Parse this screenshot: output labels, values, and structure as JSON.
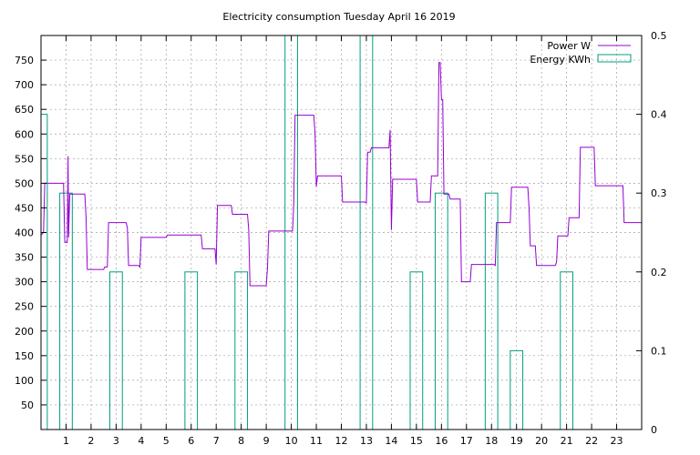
{
  "chart_data": {
    "type": "line",
    "title": "Electricity consumption Tuesday April 16 2019",
    "xlim": [
      0,
      24
    ],
    "ylim": [
      0,
      800
    ],
    "y2lim": [
      0,
      0.5
    ],
    "x_ticks": [
      1,
      2,
      3,
      4,
      5,
      6,
      7,
      8,
      9,
      10,
      11,
      12,
      13,
      14,
      15,
      16,
      17,
      18,
      19,
      20,
      21,
      22,
      23
    ],
    "y_ticks": [
      50,
      100,
      150,
      200,
      250,
      300,
      350,
      400,
      450,
      500,
      550,
      600,
      650,
      700,
      750
    ],
    "y2_ticks": [
      0,
      0.1,
      0.2,
      0.3,
      0.4,
      0.5
    ],
    "grid": true,
    "legend_position": "top-right",
    "series": [
      {
        "name": "Power W",
        "type": "step-line",
        "axis": "y",
        "color": "#9400d3",
        "points": [
          [
            0,
            395
          ],
          [
            0.1,
            400
          ],
          [
            0.15,
            500
          ],
          [
            0.9,
            500
          ],
          [
            0.95,
            380
          ],
          [
            1.05,
            380
          ],
          [
            1.08,
            555
          ],
          [
            1.1,
            390
          ],
          [
            1.15,
            478
          ],
          [
            1.75,
            478
          ],
          [
            1.8,
            430
          ],
          [
            1.85,
            325
          ],
          [
            2.5,
            325
          ],
          [
            2.55,
            330
          ],
          [
            2.65,
            330
          ],
          [
            2.7,
            420
          ],
          [
            3.4,
            420
          ],
          [
            3.45,
            410
          ],
          [
            3.5,
            333
          ],
          [
            3.9,
            333
          ],
          [
            3.95,
            330
          ],
          [
            4.0,
            390
          ],
          [
            5.0,
            390
          ],
          [
            5.05,
            395
          ],
          [
            6.4,
            395
          ],
          [
            6.45,
            367
          ],
          [
            6.95,
            367
          ],
          [
            7.0,
            335
          ],
          [
            7.05,
            455
          ],
          [
            7.6,
            455
          ],
          [
            7.65,
            437
          ],
          [
            8.25,
            437
          ],
          [
            8.3,
            405
          ],
          [
            8.35,
            292
          ],
          [
            9.0,
            292
          ],
          [
            9.05,
            330
          ],
          [
            9.1,
            403
          ],
          [
            10.05,
            403
          ],
          [
            10.1,
            460
          ],
          [
            10.15,
            638
          ],
          [
            10.9,
            638
          ],
          [
            10.95,
            600
          ],
          [
            11.0,
            493
          ],
          [
            11.05,
            515
          ],
          [
            12.0,
            515
          ],
          [
            12.05,
            462
          ],
          [
            12.95,
            462
          ],
          [
            13.0,
            460
          ],
          [
            13.05,
            563
          ],
          [
            13.15,
            563
          ],
          [
            13.2,
            572
          ],
          [
            13.9,
            572
          ],
          [
            13.95,
            608
          ],
          [
            14.0,
            405
          ],
          [
            14.05,
            508
          ],
          [
            15.0,
            508
          ],
          [
            15.05,
            462
          ],
          [
            15.55,
            462
          ],
          [
            15.6,
            515
          ],
          [
            15.85,
            515
          ],
          [
            15.9,
            745
          ],
          [
            15.95,
            745
          ],
          [
            16.0,
            670
          ],
          [
            16.05,
            670
          ],
          [
            16.1,
            478
          ],
          [
            16.3,
            478
          ],
          [
            16.35,
            468
          ],
          [
            16.75,
            468
          ],
          [
            16.8,
            300
          ],
          [
            17.15,
            300
          ],
          [
            17.2,
            335
          ],
          [
            18.1,
            335
          ],
          [
            18.15,
            333
          ],
          [
            18.2,
            420
          ],
          [
            18.75,
            420
          ],
          [
            18.8,
            492
          ],
          [
            19.45,
            492
          ],
          [
            19.5,
            450
          ],
          [
            19.55,
            373
          ],
          [
            19.75,
            373
          ],
          [
            19.8,
            333
          ],
          [
            20.55,
            333
          ],
          [
            20.6,
            340
          ],
          [
            20.65,
            393
          ],
          [
            21.05,
            393
          ],
          [
            21.1,
            430
          ],
          [
            21.5,
            430
          ],
          [
            21.55,
            573
          ],
          [
            22.1,
            573
          ],
          [
            22.15,
            495
          ],
          [
            23.25,
            495
          ],
          [
            23.3,
            420
          ],
          [
            24.0,
            420
          ]
        ]
      },
      {
        "name": "Energy KWh",
        "type": "boxes",
        "axis": "y2",
        "color": "#00a080",
        "bars": [
          {
            "x0": 0.0,
            "x1": 0.25,
            "value": 0.4
          },
          {
            "x0": 0.75,
            "x1": 1.25,
            "value": 0.3
          },
          {
            "x0": 2.75,
            "x1": 3.25,
            "value": 0.2
          },
          {
            "x0": 5.75,
            "x1": 6.25,
            "value": 0.2
          },
          {
            "x0": 7.75,
            "x1": 8.25,
            "value": 0.2
          },
          {
            "x0": 9.75,
            "x1": 10.25,
            "value": 0.5
          },
          {
            "x0": 12.75,
            "x1": 13.25,
            "value": 0.5
          },
          {
            "x0": 14.75,
            "x1": 15.25,
            "value": 0.2
          },
          {
            "x0": 15.75,
            "x1": 16.25,
            "value": 0.3
          },
          {
            "x0": 17.75,
            "x1": 18.25,
            "value": 0.3
          },
          {
            "x0": 18.75,
            "x1": 19.25,
            "value": 0.1
          },
          {
            "x0": 20.75,
            "x1": 21.25,
            "value": 0.2
          }
        ]
      }
    ]
  }
}
